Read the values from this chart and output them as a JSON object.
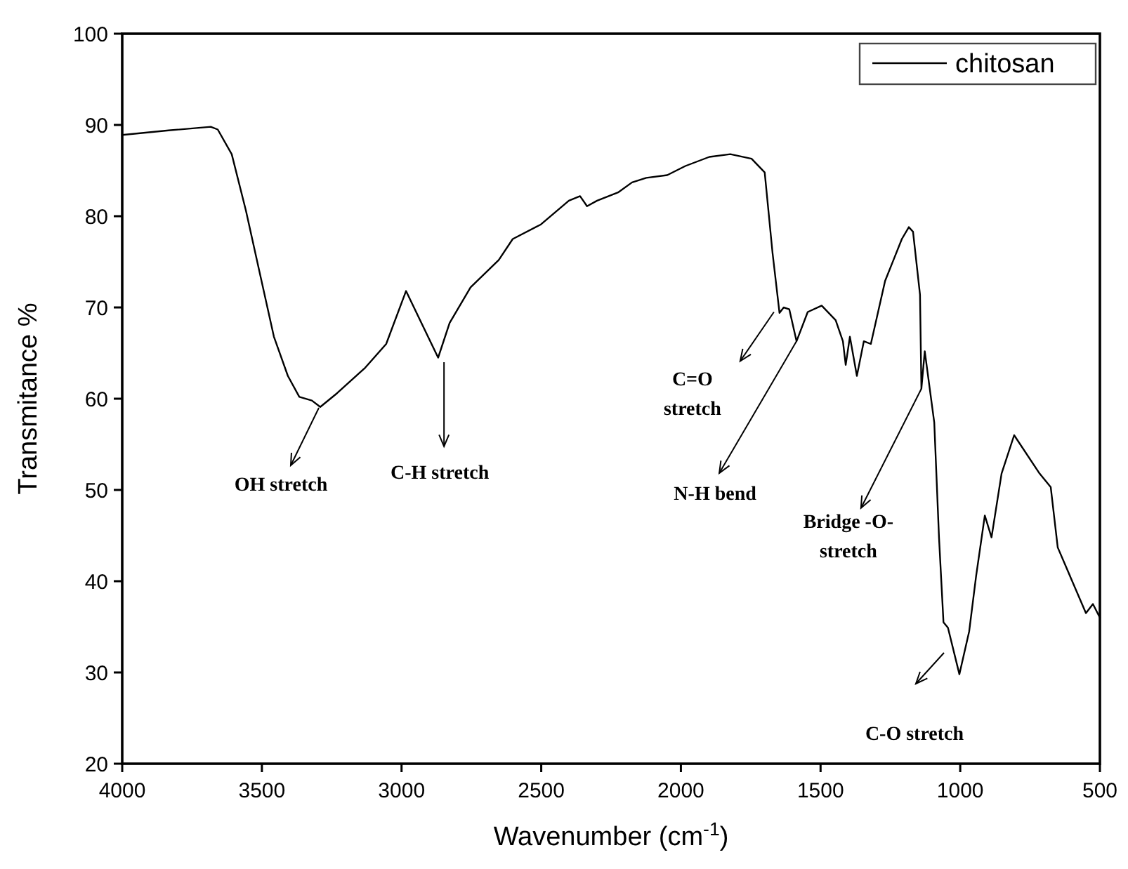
{
  "chart_data": {
    "type": "line",
    "xlabel": "Wavenumber (cm$^{-1}$)",
    "ylabel": "Transmitance %",
    "xlim": [
      4000,
      500
    ],
    "ylim": [
      20,
      100
    ],
    "xticks": [
      4000,
      3500,
      3000,
      2500,
      2000,
      1500,
      1000,
      500
    ],
    "yticks": [
      20,
      30,
      40,
      50,
      60,
      70,
      80,
      90,
      100
    ],
    "grid": false,
    "legend": "top right",
    "marker": "none",
    "line_style": "solid",
    "series": [
      {
        "name": "chitosan",
        "color": "#000000",
        "x": [
          4000,
          3834,
          3683,
          3658,
          3608,
          3557,
          3507,
          3457,
          3407,
          3366,
          3321,
          3291,
          3231,
          3130,
          3055,
          2984,
          2929,
          2869,
          2828,
          2753,
          2652,
          2602,
          2501,
          2401,
          2361,
          2336,
          2300,
          2225,
          2175,
          2124,
          2049,
          1984,
          1898,
          1823,
          1747,
          1700,
          1672,
          1647,
          1632,
          1612,
          1586,
          1546,
          1496,
          1446,
          1420,
          1410,
          1395,
          1370,
          1345,
          1320,
          1269,
          1209,
          1184,
          1169,
          1144,
          1139,
          1127,
          1093,
          1076,
          1060,
          1044,
          1003,
          968,
          943,
          912,
          888,
          852,
          807,
          716,
          676,
          651,
          550,
          525,
          500
        ],
        "values": [
          88.9,
          89.4,
          89.8,
          89.5,
          86.8,
          80.6,
          73.7,
          66.8,
          62.5,
          60.2,
          59.8,
          59.1,
          60.6,
          63.4,
          66.0,
          71.8,
          68.3,
          64.5,
          68.3,
          72.2,
          75.2,
          77.5,
          79.1,
          81.7,
          82.2,
          81.1,
          81.7,
          82.6,
          83.7,
          84.2,
          84.5,
          85.5,
          86.5,
          86.8,
          86.3,
          84.8,
          76.0,
          69.4,
          70.0,
          69.8,
          66.3,
          69.5,
          70.2,
          68.6,
          66.3,
          63.7,
          66.8,
          62.5,
          66.3,
          66.0,
          72.9,
          77.5,
          78.8,
          78.3,
          71.4,
          61.1,
          65.2,
          57.4,
          44.8,
          35.5,
          34.9,
          29.8,
          34.5,
          40.6,
          47.2,
          44.8,
          51.8,
          56.0,
          51.8,
          50.3,
          43.7,
          36.5,
          37.5,
          36.0
        ]
      }
    ],
    "annotations": [
      {
        "text": "OH stretch",
        "x": 3296,
        "y": 59
      },
      {
        "text": "C-H stretch",
        "x": 2848,
        "y": 64
      },
      {
        "text": "C=O stretch",
        "x": 1667,
        "y": 69.5
      },
      {
        "text": "N-H bend",
        "x": 1586,
        "y": 66.3
      },
      {
        "text": "Bridge -O- stretch",
        "x": 1139,
        "y": 61.1
      },
      "C-O stretch"
    ]
  }
}
